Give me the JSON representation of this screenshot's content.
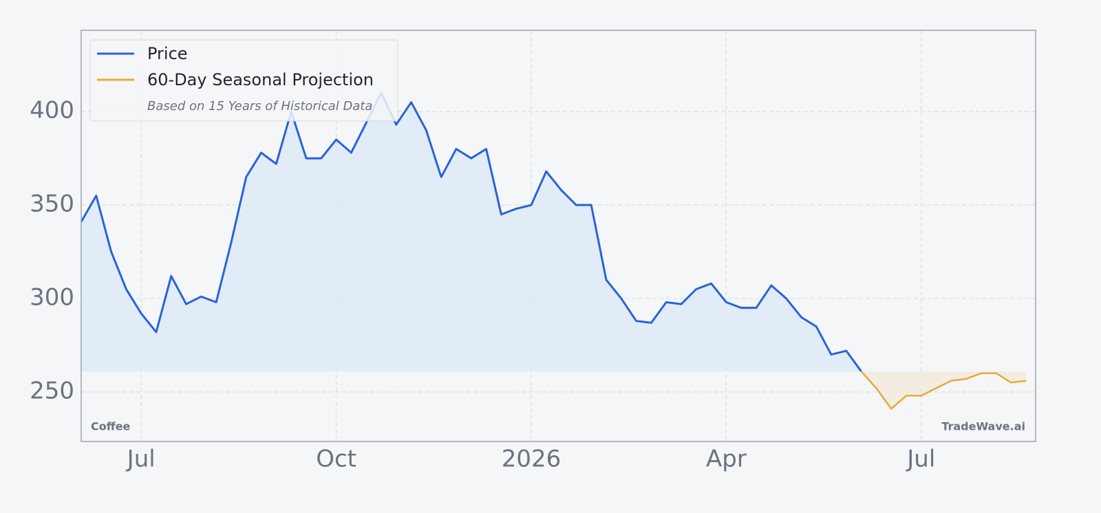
{
  "chart_data": {
    "type": "line",
    "categories": [
      null,
      null,
      null,
      null,
      "Jul",
      null,
      null,
      null,
      null,
      null,
      null,
      null,
      null,
      null,
      null,
      null,
      null,
      "Oct",
      null,
      null,
      null,
      null,
      null,
      null,
      null,
      null,
      null,
      null,
      null,
      null,
      "2026",
      null,
      null,
      null,
      null,
      null,
      null,
      null,
      null,
      null,
      null,
      null,
      null,
      "Apr",
      null,
      null,
      null,
      null,
      null,
      null,
      null,
      null,
      null,
      null,
      null,
      null,
      "Jul",
      null,
      null,
      null,
      null,
      null,
      null,
      null
    ],
    "series": [
      {
        "name": "Price",
        "color": "#2a62d9",
        "values": [
          341,
          355,
          325,
          305,
          292,
          282,
          312,
          297,
          301,
          298,
          330,
          365,
          378,
          372,
          400,
          375,
          375,
          385,
          378,
          394,
          410,
          393,
          405,
          390,
          365,
          380,
          375,
          380,
          345,
          348,
          350,
          368,
          358,
          350,
          350,
          310,
          300,
          288,
          287,
          298,
          297,
          305,
          308,
          298,
          295,
          295,
          307,
          300,
          290,
          285,
          270,
          272,
          261,
          null,
          null,
          null,
          null,
          null,
          null,
          null,
          null,
          null,
          null,
          null
        ]
      },
      {
        "name": "60-Day Seasonal Projection",
        "color": "#e8a838",
        "values": [
          null,
          null,
          null,
          null,
          null,
          null,
          null,
          null,
          null,
          null,
          null,
          null,
          null,
          null,
          null,
          null,
          null,
          null,
          null,
          null,
          null,
          null,
          null,
          null,
          null,
          null,
          null,
          null,
          null,
          null,
          null,
          null,
          null,
          null,
          null,
          null,
          null,
          null,
          null,
          null,
          null,
          null,
          null,
          null,
          null,
          null,
          null,
          null,
          null,
          null,
          null,
          null,
          261,
          252,
          241,
          248,
          248,
          252,
          256,
          257,
          260,
          260,
          255,
          256
        ]
      }
    ],
    "legend_note": "Based on 15 Years of Historical Data",
    "annotations": [
      "Coffee",
      "TradeWave.ai"
    ],
    "ylim": [
      223.5,
      443.5
    ],
    "yticks": [
      250,
      300,
      350,
      400
    ],
    "grid": true,
    "legend": "upper left"
  }
}
